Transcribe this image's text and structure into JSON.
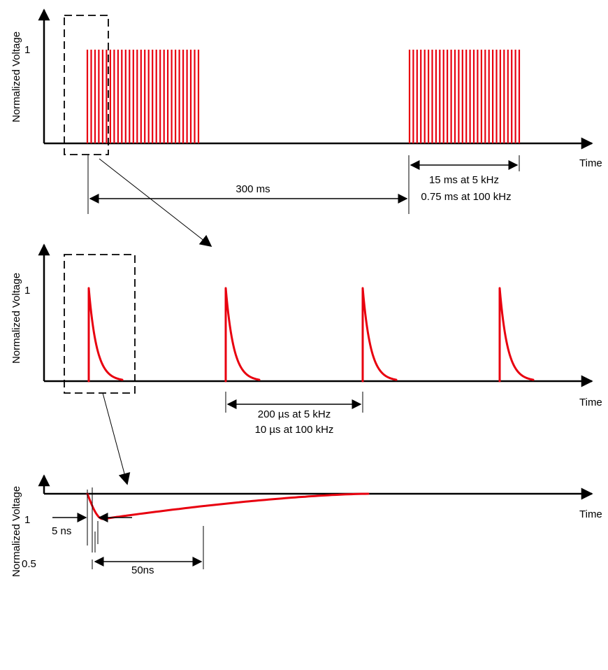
{
  "colors": {
    "pulse": "#e8000f",
    "ink": "#000000"
  },
  "panels": [
    {
      "ylabel": "Normalized Voltage",
      "xlabel": "Time",
      "ytick_1": "1",
      "period_label": "300 ms",
      "burst_label_1": "15 ms at 5 kHz",
      "burst_label_2": "0.75 ms at 100 kHz"
    },
    {
      "ylabel": "Normalized Voltage",
      "xlabel": "Time",
      "ytick_1": "1",
      "spacing_label_1": "200 µs at 5 kHz",
      "spacing_label_2": "10 µs at 100 kHz"
    },
    {
      "ylabel": "Normalized Voltage",
      "xlabel": "Time",
      "ytick_1": "1",
      "ytick_half": "0.5",
      "rise_label": "5 ns",
      "width_label": "50ns"
    }
  ]
}
